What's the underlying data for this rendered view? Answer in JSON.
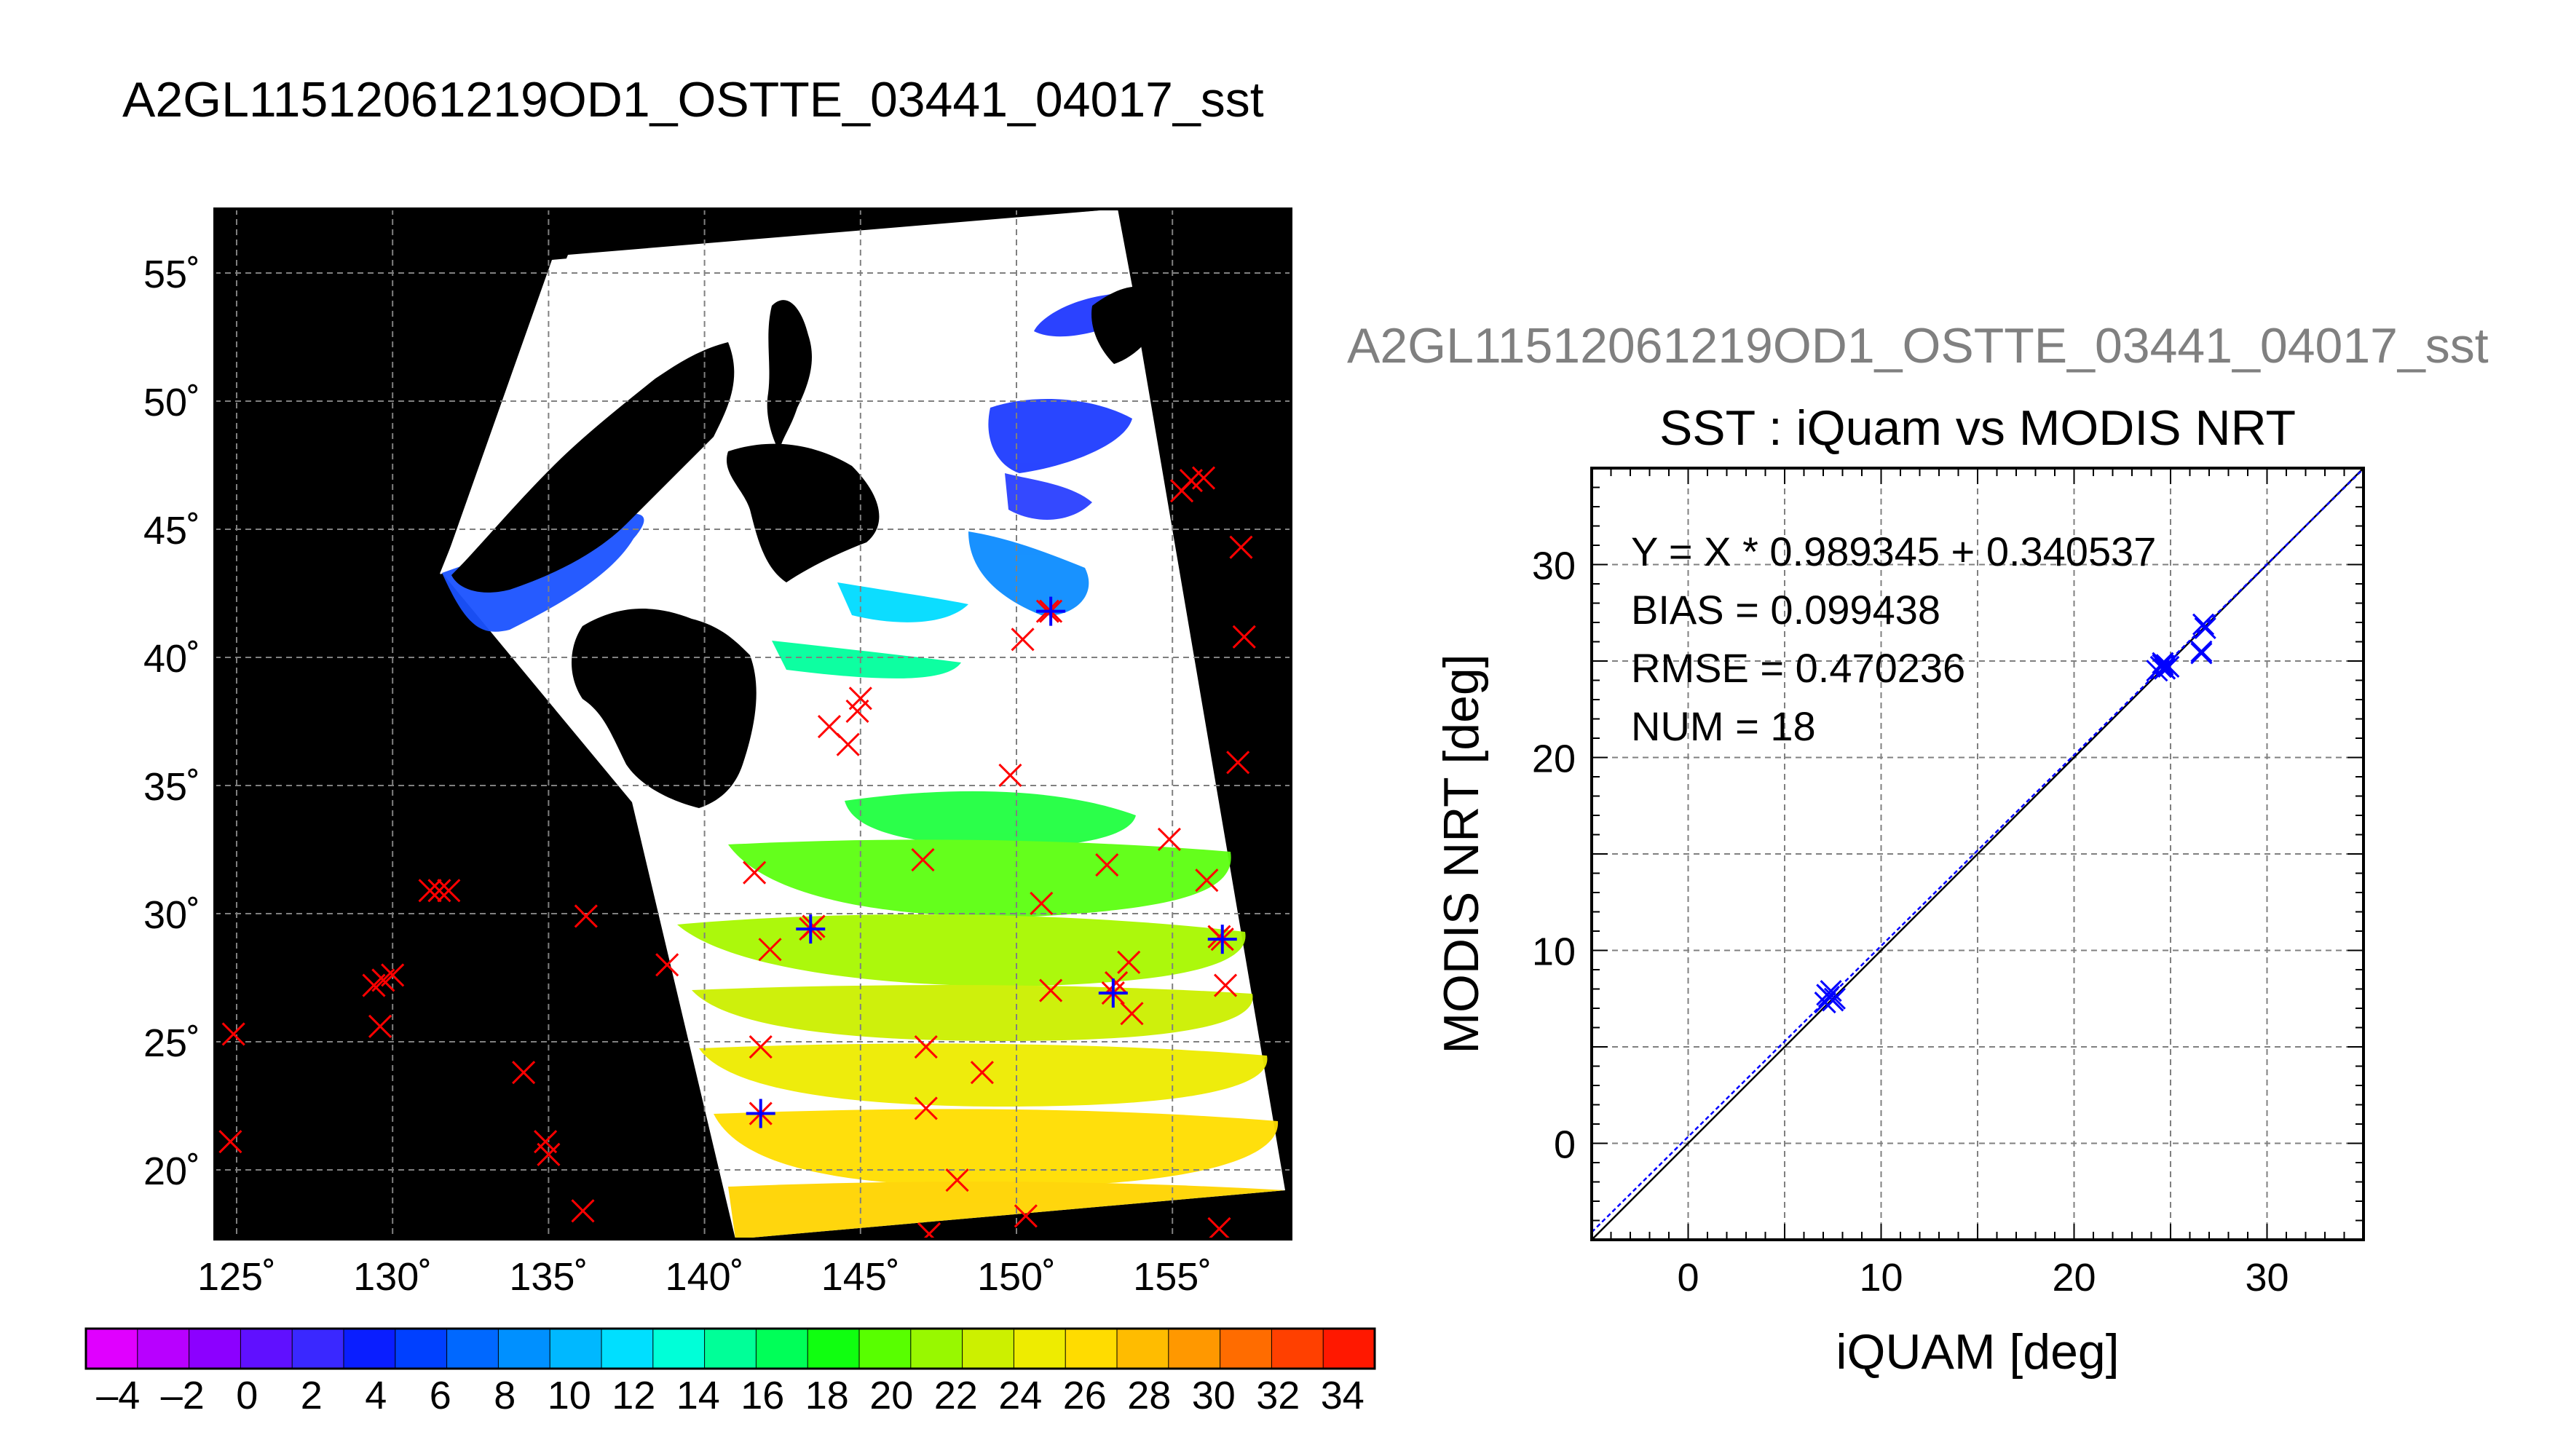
{
  "figure": {
    "map_title": "A2GL11512061219OD1_OSTTE_03441_04017_sst",
    "scatter_file_title": "A2GL11512061219OD1_OSTTE_03441_04017_sst"
  },
  "map": {
    "lon_range": [
      124.3,
      158.8
    ],
    "lat_range": [
      17.3,
      57.5
    ],
    "lon_ticks": [
      125,
      130,
      135,
      140,
      145,
      150,
      155
    ],
    "lat_ticks": [
      55,
      50,
      45,
      40,
      35,
      30,
      25,
      20
    ],
    "lon_tick_labels": [
      "125˚",
      "130˚",
      "135˚",
      "140˚",
      "145˚",
      "150˚",
      "155˚"
    ],
    "lat_tick_labels": [
      "55˚",
      "50˚",
      "45˚",
      "40˚",
      "35˚",
      "30˚",
      "25˚",
      "20˚"
    ],
    "background_color": "#000000",
    "swath_color": "#ffffff",
    "buoys_red": [
      [
        124.9,
        25.3
      ],
      [
        124.8,
        21.1
      ],
      [
        129.4,
        27.2
      ],
      [
        129.7,
        27.4
      ],
      [
        130.0,
        27.6
      ],
      [
        129.6,
        25.6
      ],
      [
        131.2,
        30.9
      ],
      [
        131.5,
        30.9
      ],
      [
        131.8,
        30.9
      ],
      [
        134.2,
        23.8
      ],
      [
        134.9,
        21.1
      ],
      [
        135.0,
        20.6
      ],
      [
        136.2,
        29.9
      ],
      [
        136.1,
        18.4
      ],
      [
        138.8,
        28.0
      ],
      [
        141.6,
        31.6
      ],
      [
        141.8,
        24.8
      ],
      [
        142.1,
        28.6
      ],
      [
        143.5,
        29.5
      ],
      [
        144.0,
        37.3
      ],
      [
        144.6,
        36.6
      ],
      [
        144.9,
        37.9
      ],
      [
        145.0,
        38.4
      ],
      [
        147.0,
        32.1
      ],
      [
        147.1,
        24.8
      ],
      [
        147.1,
        22.4
      ],
      [
        147.2,
        17.5
      ],
      [
        148.1,
        19.6
      ],
      [
        148.9,
        23.8
      ],
      [
        149.8,
        35.4
      ],
      [
        150.2,
        40.7
      ],
      [
        150.3,
        18.2
      ],
      [
        150.8,
        30.4
      ],
      [
        151.0,
        41.8
      ],
      [
        151.1,
        27.0
      ],
      [
        152.9,
        31.9
      ],
      [
        153.2,
        27.3
      ],
      [
        153.6,
        28.1
      ],
      [
        153.7,
        26.1
      ],
      [
        154.9,
        32.9
      ],
      [
        156.1,
        31.3
      ],
      [
        156.5,
        29.1
      ],
      [
        156.7,
        27.2
      ],
      [
        155.3,
        46.5
      ],
      [
        155.6,
        46.9
      ],
      [
        156.0,
        47.0
      ],
      [
        157.2,
        44.3
      ],
      [
        157.3,
        40.8
      ],
      [
        157.1,
        35.9
      ],
      [
        156.5,
        17.7
      ]
    ],
    "buoys_blue_star": [
      [
        141.8,
        22.2
      ],
      [
        143.4,
        29.4
      ],
      [
        151.1,
        41.8
      ],
      [
        153.1,
        26.9
      ],
      [
        156.6,
        29.0
      ]
    ]
  },
  "colorbar": {
    "min": -5,
    "max": 35,
    "tick_labels": [
      "–4",
      "–2",
      "0",
      "2",
      "4",
      "6",
      "8",
      "10",
      "12",
      "14",
      "16",
      "18",
      "20",
      "22",
      "24",
      "26",
      "28",
      "30",
      "32",
      "34"
    ],
    "colors": [
      "#e000ff",
      "#b800ff",
      "#8c00ff",
      "#6010ff",
      "#3a28ff",
      "#0a1eff",
      "#0040ff",
      "#0068ff",
      "#0090ff",
      "#00b8ff",
      "#00dfff",
      "#00ffd8",
      "#00ff98",
      "#00ff58",
      "#10ff10",
      "#58ff00",
      "#98f800",
      "#ccf000",
      "#eeec00",
      "#ffdc00",
      "#ffbc00",
      "#ff9800",
      "#ff6c00",
      "#ff4000",
      "#ff1800"
    ]
  },
  "chart_data": {
    "type": "scatter",
    "title": "SST : iQuam vs MODIS NRT",
    "xlabel": "iQUAM [deg]",
    "ylabel": "MODIS NRT [deg]",
    "xlim": [
      -5,
      35
    ],
    "ylim": [
      -5,
      35
    ],
    "xticks": [
      0,
      10,
      20,
      30
    ],
    "yticks": [
      0,
      10,
      20,
      30
    ],
    "grid": true,
    "annotations": [
      "Y = X * 0.989345 + 0.340537",
      "BIAS = 0.099438",
      "RMSE = 0.470236",
      "NUM = 18"
    ],
    "series": [
      {
        "marker": "x",
        "color": "#0000ff",
        "x": [
          7.1,
          7.3,
          7.4,
          7.6,
          24.3,
          24.5,
          24.6,
          24.7,
          24.8,
          24.9,
          26.6,
          26.7,
          26.8,
          26.6,
          24.6,
          7.2,
          24.7,
          7.5
        ],
        "y": [
          7.3,
          7.6,
          7.9,
          7.5,
          24.5,
          24.7,
          24.9,
          24.6,
          24.8,
          24.7,
          25.5,
          26.9,
          26.7,
          25.4,
          24.8,
          7.7,
          24.6,
          7.4
        ]
      }
    ],
    "fit_line": {
      "slope": 0.989345,
      "intercept": 0.340537
    },
    "identity_line": true
  }
}
